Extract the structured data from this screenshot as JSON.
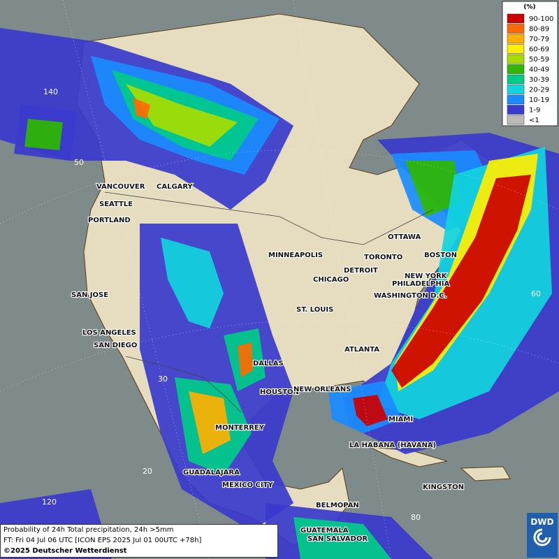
{
  "map": {
    "legend": {
      "title": "(%)",
      "items": [
        {
          "label": "90-100",
          "color": "#cc0000"
        },
        {
          "label": "80-89",
          "color": "#ff6a00"
        },
        {
          "label": "70-79",
          "color": "#ffb000"
        },
        {
          "label": "60-69",
          "color": "#ffee00"
        },
        {
          "label": "50-59",
          "color": "#a6dc00"
        },
        {
          "label": "40-49",
          "color": "#2fb800"
        },
        {
          "label": "30-39",
          "color": "#00cc88"
        },
        {
          "label": "20-29",
          "color": "#11d4dd"
        },
        {
          "label": "10-19",
          "color": "#1a8cff"
        },
        {
          "label": "1-9",
          "color": "#3a3acc"
        },
        {
          "label": "<1",
          "color": "#bbbbbb"
        }
      ]
    },
    "cities": [
      "VANCOUVER",
      "CALGARY",
      "SEATTLE",
      "PORTLAND",
      "SAN JOSE",
      "LOS ANGELES",
      "SAN DIEGO",
      "DALLAS",
      "HOUSTON",
      "NEW ORLEANS",
      "MONTERREY",
      "GUADALAJARA",
      "MEXICO CITY",
      "MINNEAPOLIS",
      "CHICAGO",
      "ST. LOUIS",
      "DETROIT",
      "TORONTO",
      "OTTAWA",
      "BOSTON",
      "NEW YORK",
      "PHILADELPHIA",
      "WASHINGTON D.C.",
      "ATLANTA",
      "MIAMI",
      "LA HABANA (HAVANA)",
      "KINGSTON",
      "BELMOPAN",
      "GUATEMALA",
      "SAN SALVADOR"
    ],
    "grid_labels": [
      "140",
      "50",
      "60",
      "30",
      "20",
      "120",
      "80"
    ],
    "footer": [
      "Probability of 24h Total precipitation, 24h >5mm",
      "FT: Fri 04 Jul 06 UTC [ICON EPS 2025 Jul 01 00UTC +78h]",
      "©2025 Deutscher Wetterdienst"
    ],
    "logo": "DWD"
  }
}
